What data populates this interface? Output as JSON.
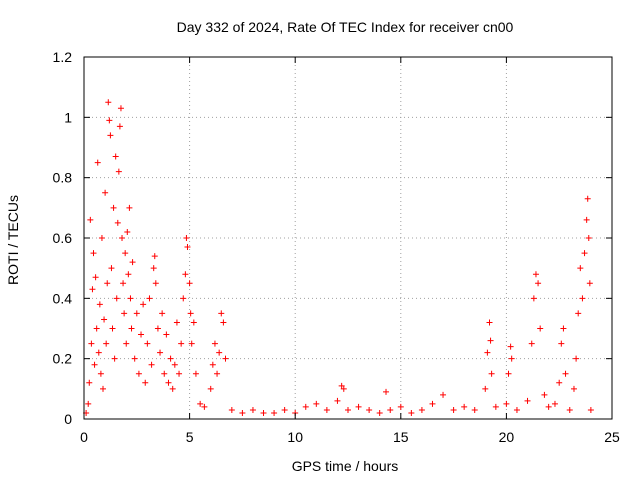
{
  "chart_data": {
    "type": "scatter",
    "title": "Day 332 of 2024, Rate Of TEC Index for receiver cn00",
    "xlabel": "GPS time / hours",
    "ylabel": "ROTI / TECUs",
    "xlim": [
      0,
      25
    ],
    "ylim": [
      0,
      1.2
    ],
    "xticks": [
      0,
      5,
      10,
      15,
      20,
      25
    ],
    "yticks": [
      0,
      0.2,
      0.4,
      0.6,
      0.8,
      1,
      1.2
    ],
    "xtick_labels": [
      "0",
      "5",
      "10",
      "15",
      "20",
      "25"
    ],
    "ytick_labels": [
      "0",
      "0.2",
      "0.4",
      "0.6",
      "0.8",
      "1",
      "1.2"
    ],
    "grid": true,
    "marker": "+",
    "color": "#ff0000",
    "series": [
      {
        "values": [
          [
            0.1,
            0.02
          ],
          [
            0.2,
            0.05
          ],
          [
            0.25,
            0.12
          ],
          [
            0.3,
            0.66
          ],
          [
            0.35,
            0.25
          ],
          [
            0.4,
            0.43
          ],
          [
            0.45,
            0.55
          ],
          [
            0.5,
            0.18
          ],
          [
            0.55,
            0.47
          ],
          [
            0.6,
            0.3
          ],
          [
            0.65,
            0.85
          ],
          [
            0.7,
            0.22
          ],
          [
            0.75,
            0.38
          ],
          [
            0.8,
            0.15
          ],
          [
            0.85,
            0.6
          ],
          [
            0.9,
            0.1
          ],
          [
            0.95,
            0.33
          ],
          [
            1.0,
            0.75
          ],
          [
            1.05,
            0.25
          ],
          [
            1.1,
            0.45
          ],
          [
            1.15,
            1.05
          ],
          [
            1.2,
            0.99
          ],
          [
            1.25,
            0.94
          ],
          [
            1.3,
            0.5
          ],
          [
            1.35,
            0.3
          ],
          [
            1.4,
            0.7
          ],
          [
            1.45,
            0.2
          ],
          [
            1.5,
            0.87
          ],
          [
            1.55,
            0.4
          ],
          [
            1.6,
            0.65
          ],
          [
            1.65,
            0.82
          ],
          [
            1.7,
            0.97
          ],
          [
            1.75,
            1.03
          ],
          [
            1.8,
            0.6
          ],
          [
            1.85,
            0.45
          ],
          [
            1.9,
            0.35
          ],
          [
            1.95,
            0.55
          ],
          [
            2.0,
            0.25
          ],
          [
            2.05,
            0.62
          ],
          [
            2.1,
            0.48
          ],
          [
            2.15,
            0.7
          ],
          [
            2.2,
            0.4
          ],
          [
            2.25,
            0.3
          ],
          [
            2.3,
            0.52
          ],
          [
            2.4,
            0.2
          ],
          [
            2.5,
            0.35
          ],
          [
            2.6,
            0.15
          ],
          [
            2.7,
            0.28
          ],
          [
            2.8,
            0.38
          ],
          [
            2.9,
            0.12
          ],
          [
            3.0,
            0.25
          ],
          [
            3.1,
            0.4
          ],
          [
            3.2,
            0.18
          ],
          [
            3.3,
            0.5
          ],
          [
            3.35,
            0.54
          ],
          [
            3.4,
            0.45
          ],
          [
            3.5,
            0.3
          ],
          [
            3.6,
            0.22
          ],
          [
            3.7,
            0.35
          ],
          [
            3.8,
            0.15
          ],
          [
            3.9,
            0.28
          ],
          [
            4.0,
            0.12
          ],
          [
            4.1,
            0.2
          ],
          [
            4.2,
            0.1
          ],
          [
            4.3,
            0.18
          ],
          [
            4.4,
            0.32
          ],
          [
            4.5,
            0.15
          ],
          [
            4.6,
            0.25
          ],
          [
            4.7,
            0.4
          ],
          [
            4.8,
            0.48
          ],
          [
            4.85,
            0.6
          ],
          [
            4.9,
            0.57
          ],
          [
            5.0,
            0.45
          ],
          [
            5.05,
            0.35
          ],
          [
            5.1,
            0.25
          ],
          [
            5.2,
            0.32
          ],
          [
            5.3,
            0.15
          ],
          [
            5.5,
            0.05
          ],
          [
            5.7,
            0.04
          ],
          [
            6.0,
            0.1
          ],
          [
            6.1,
            0.18
          ],
          [
            6.2,
            0.25
          ],
          [
            6.3,
            0.15
          ],
          [
            6.4,
            0.22
          ],
          [
            6.5,
            0.35
          ],
          [
            6.6,
            0.32
          ],
          [
            6.7,
            0.2
          ],
          [
            7.0,
            0.03
          ],
          [
            7.5,
            0.02
          ],
          [
            8.0,
            0.03
          ],
          [
            8.5,
            0.02
          ],
          [
            9.0,
            0.02
          ],
          [
            9.5,
            0.03
          ],
          [
            10.0,
            0.02
          ],
          [
            10.5,
            0.04
          ],
          [
            11.0,
            0.05
          ],
          [
            11.5,
            0.03
          ],
          [
            12.0,
            0.06
          ],
          [
            12.2,
            0.11
          ],
          [
            12.3,
            0.1
          ],
          [
            12.5,
            0.03
          ],
          [
            13.0,
            0.04
          ],
          [
            13.5,
            0.03
          ],
          [
            14.0,
            0.02
          ],
          [
            14.3,
            0.09
          ],
          [
            14.5,
            0.03
          ],
          [
            15.0,
            0.04
          ],
          [
            15.5,
            0.02
          ],
          [
            16.0,
            0.03
          ],
          [
            16.5,
            0.05
          ],
          [
            17.0,
            0.08
          ],
          [
            17.5,
            0.03
          ],
          [
            18.0,
            0.04
          ],
          [
            18.5,
            0.03
          ],
          [
            19.0,
            0.1
          ],
          [
            19.1,
            0.22
          ],
          [
            19.2,
            0.32
          ],
          [
            19.25,
            0.26
          ],
          [
            19.3,
            0.15
          ],
          [
            19.5,
            0.04
          ],
          [
            20.0,
            0.05
          ],
          [
            20.1,
            0.15
          ],
          [
            20.2,
            0.24
          ],
          [
            20.25,
            0.2
          ],
          [
            20.5,
            0.03
          ],
          [
            21.0,
            0.06
          ],
          [
            21.2,
            0.25
          ],
          [
            21.3,
            0.4
          ],
          [
            21.4,
            0.48
          ],
          [
            21.5,
            0.45
          ],
          [
            21.6,
            0.3
          ],
          [
            21.8,
            0.08
          ],
          [
            22.0,
            0.04
          ],
          [
            22.3,
            0.05
          ],
          [
            22.5,
            0.12
          ],
          [
            22.6,
            0.25
          ],
          [
            22.7,
            0.3
          ],
          [
            22.8,
            0.15
          ],
          [
            23.0,
            0.03
          ],
          [
            23.2,
            0.1
          ],
          [
            23.3,
            0.2
          ],
          [
            23.4,
            0.35
          ],
          [
            23.5,
            0.5
          ],
          [
            23.6,
            0.4
          ],
          [
            23.7,
            0.55
          ],
          [
            23.8,
            0.66
          ],
          [
            23.85,
            0.73
          ],
          [
            23.9,
            0.6
          ],
          [
            23.95,
            0.45
          ],
          [
            24.0,
            0.03
          ]
        ]
      }
    ]
  }
}
